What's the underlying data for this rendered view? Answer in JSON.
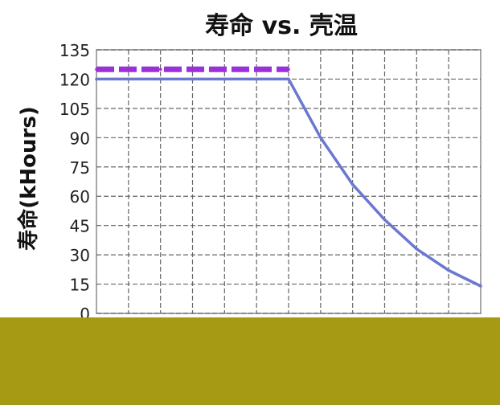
{
  "chart_data": {
    "type": "line",
    "title": "寿命 vs. 壳温",
    "ylabel": "寿命(kHours)",
    "xlabel": "",
    "ylim": [
      0,
      135
    ],
    "yticks": [
      "0",
      "15",
      "30",
      "45",
      "60",
      "75",
      "90",
      "105",
      "120",
      "135"
    ],
    "grid": true,
    "series": [
      {
        "color": "#9b30d9",
        "style": "dashed",
        "points": [
          [
            0,
            125
          ],
          [
            1,
            125
          ],
          [
            2,
            125
          ],
          [
            3,
            125
          ],
          [
            4,
            125
          ],
          [
            5,
            125
          ],
          [
            6,
            125
          ]
        ]
      },
      {
        "color": "#6a78d0",
        "style": "solid",
        "points": [
          [
            0,
            120
          ],
          [
            1,
            120
          ],
          [
            2,
            120
          ],
          [
            3,
            120
          ],
          [
            4,
            120
          ],
          [
            5,
            120
          ],
          [
            6,
            120
          ],
          [
            7,
            90
          ],
          [
            8,
            66
          ],
          [
            9,
            48
          ],
          [
            10,
            33
          ],
          [
            11,
            22
          ],
          [
            12,
            14
          ]
        ]
      }
    ],
    "bottom_band_color": "#a69a14"
  }
}
